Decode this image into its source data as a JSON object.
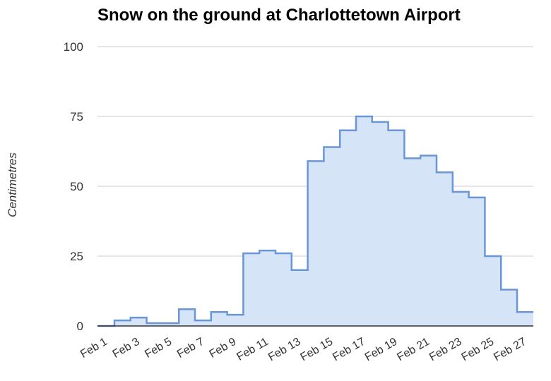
{
  "chart_data": {
    "type": "area",
    "step": true,
    "title": "Snow on the ground at Charlottetown Airport",
    "xlabel": "",
    "ylabel": "Centimetres",
    "ylim": [
      0,
      100
    ],
    "yticks": [
      0,
      25,
      50,
      75,
      100
    ],
    "grid": true,
    "legend": "none",
    "colors": {
      "line": "#6a96d8",
      "fill": "#d6e4f7",
      "grid": "#cccccc",
      "axis": "#333333"
    },
    "x_tick_labels": [
      "Feb 1",
      "Feb 3",
      "Feb 5",
      "Feb 7",
      "Feb 9",
      "Feb 11",
      "Feb 13",
      "Feb 15",
      "Feb 17",
      "Feb 19",
      "Feb 21",
      "Feb 23",
      "Feb 25",
      "Feb 27"
    ],
    "x": [
      "Feb 1",
      "Feb 2",
      "Feb 3",
      "Feb 4",
      "Feb 5",
      "Feb 6",
      "Feb 7",
      "Feb 8",
      "Feb 9",
      "Feb 10",
      "Feb 11",
      "Feb 12",
      "Feb 13",
      "Feb 14",
      "Feb 15",
      "Feb 16",
      "Feb 17",
      "Feb 18",
      "Feb 19",
      "Feb 20",
      "Feb 21",
      "Feb 22",
      "Feb 23",
      "Feb 24",
      "Feb 25",
      "Feb 26",
      "Feb 27"
    ],
    "series": [
      {
        "values": [
          0,
          2,
          3,
          1,
          1,
          6,
          2,
          5,
          4,
          26,
          27,
          26,
          20,
          59,
          64,
          70,
          75,
          73,
          70,
          60,
          61,
          55,
          48,
          46,
          25,
          13,
          5
        ]
      }
    ]
  }
}
